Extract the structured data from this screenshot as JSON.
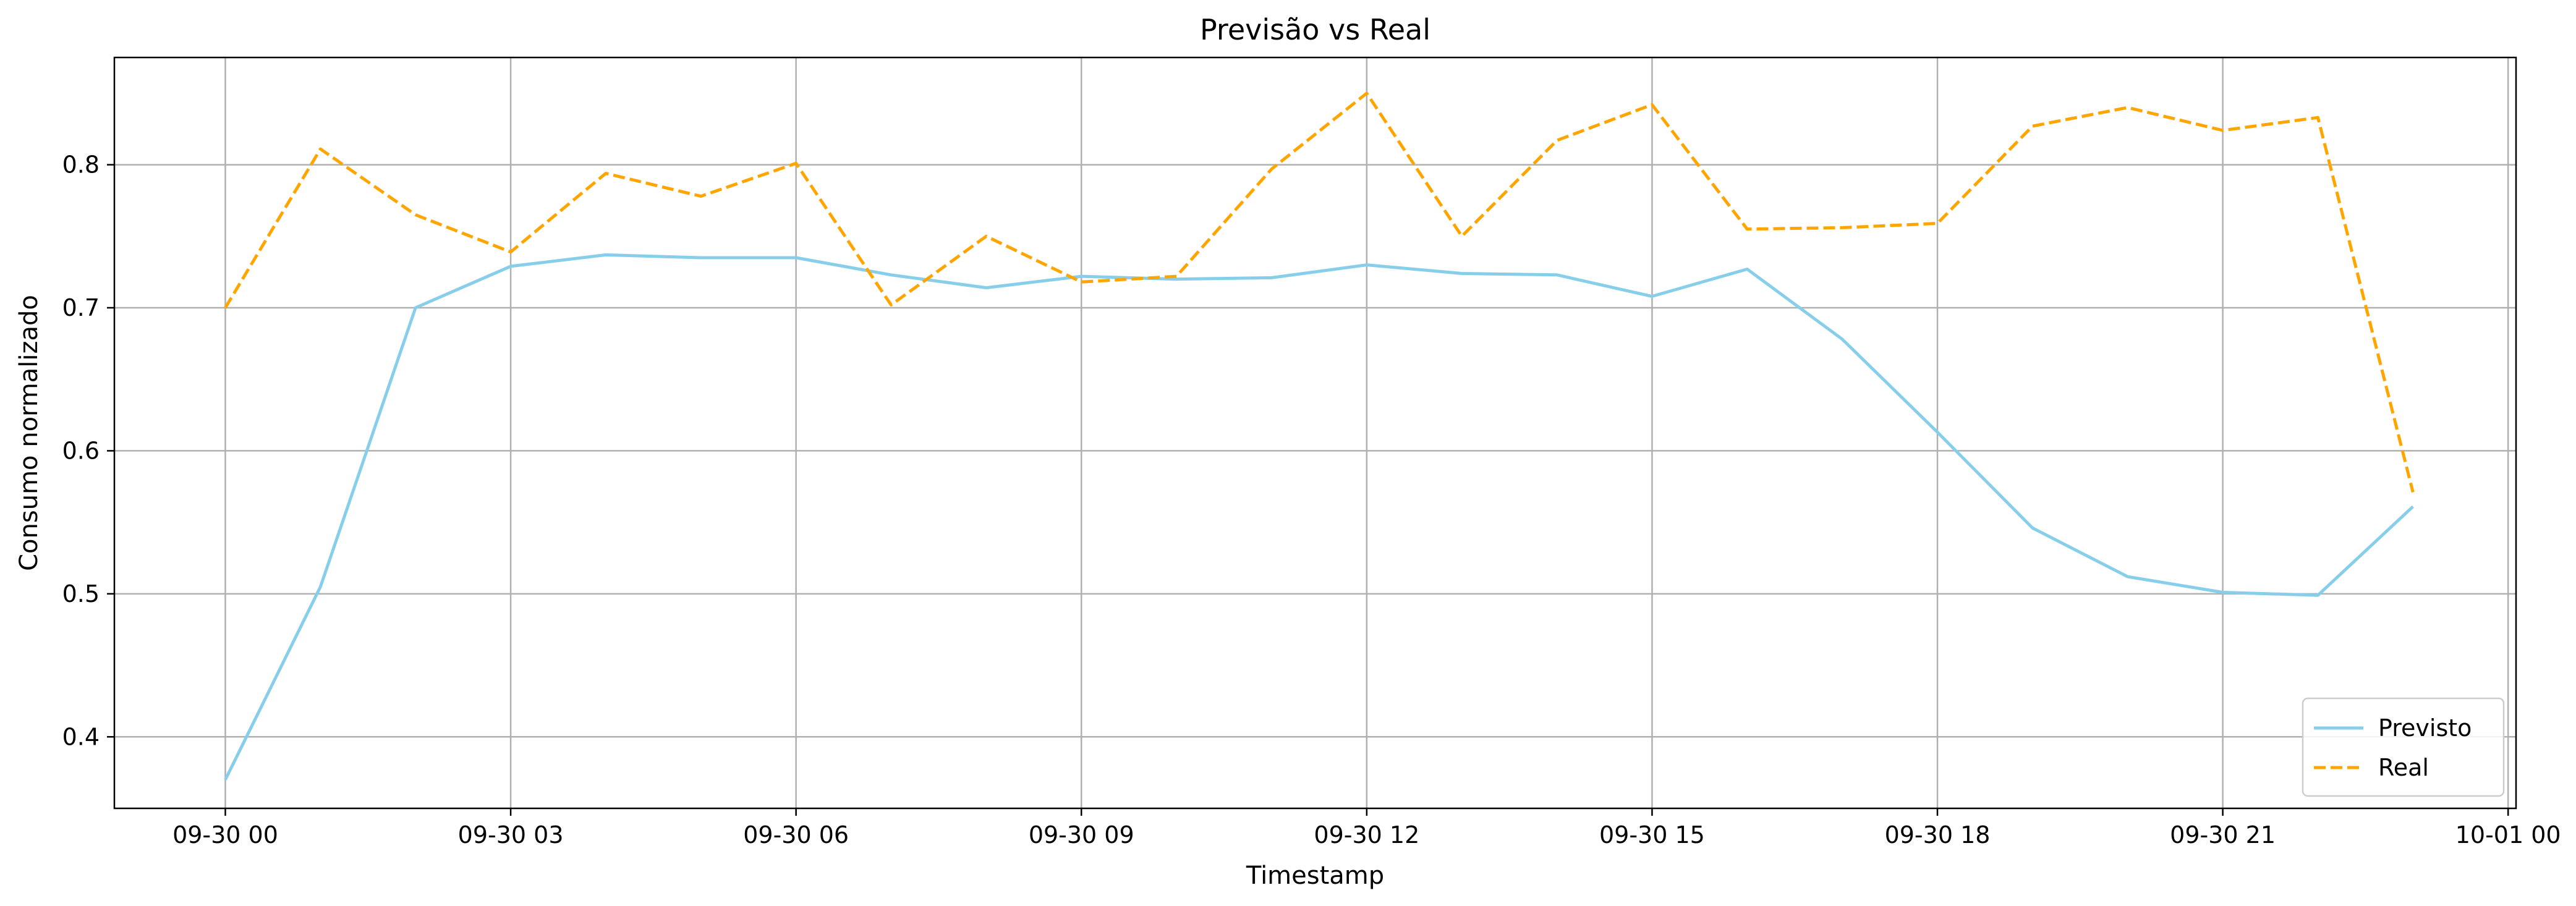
{
  "chart_data": {
    "type": "line",
    "title": "Previsão vs Real",
    "xlabel": "Timestamp",
    "ylabel": "Consumo normalizado",
    "x": [
      "2023-09-30T00:00",
      "2023-09-30T01:00",
      "2023-09-30T02:00",
      "2023-09-30T03:00",
      "2023-09-30T04:00",
      "2023-09-30T05:00",
      "2023-09-30T06:00",
      "2023-09-30T07:00",
      "2023-09-30T08:00",
      "2023-09-30T09:00",
      "2023-09-30T10:00",
      "2023-09-30T11:00",
      "2023-09-30T12:00",
      "2023-09-30T13:00",
      "2023-09-30T14:00",
      "2023-09-30T15:00",
      "2023-09-30T16:00",
      "2023-09-30T17:00",
      "2023-09-30T18:00",
      "2023-09-30T19:00",
      "2023-09-30T20:00",
      "2023-09-30T21:00",
      "2023-09-30T22:00",
      "2023-09-30T23:00"
    ],
    "xlim": [
      "2023-09-29T22:50",
      "2023-10-01T00:05"
    ],
    "ylim": [
      0.35,
      0.875
    ],
    "x_ticks": [
      "2023-09-30T00:00",
      "2023-09-30T03:00",
      "2023-09-30T06:00",
      "2023-09-30T09:00",
      "2023-09-30T12:00",
      "2023-09-30T15:00",
      "2023-09-30T18:00",
      "2023-09-30T21:00",
      "2023-10-01T00:00"
    ],
    "x_tick_labels": [
      "09-30 00",
      "09-30 03",
      "09-30 06",
      "09-30 09",
      "09-30 12",
      "09-30 15",
      "09-30 18",
      "09-30 21",
      "10-01 00"
    ],
    "y_ticks": [
      0.4,
      0.5,
      0.6,
      0.7,
      0.8
    ],
    "y_tick_labels": [
      "0.4",
      "0.5",
      "0.6",
      "0.7",
      "0.8"
    ],
    "grid": true,
    "legend_position": "bottom-right",
    "series": [
      {
        "name": "Previsto",
        "color": "#87ceeb",
        "dash": "solid",
        "values": [
          0.37,
          0.505,
          0.7,
          0.729,
          0.737,
          0.735,
          0.735,
          0.723,
          0.714,
          0.722,
          0.72,
          0.721,
          0.73,
          0.724,
          0.723,
          0.708,
          0.727,
          0.678,
          0.613,
          0.546,
          0.512,
          0.501,
          0.499,
          0.561
        ]
      },
      {
        "name": "Real",
        "color": "#ffa500",
        "dash": "dashed",
        "values": [
          0.7,
          0.811,
          0.765,
          0.739,
          0.794,
          0.778,
          0.801,
          0.702,
          0.75,
          0.718,
          0.722,
          0.797,
          0.85,
          0.75,
          0.817,
          0.842,
          0.755,
          0.756,
          0.759,
          0.827,
          0.84,
          0.824,
          0.833,
          0.571
        ]
      }
    ]
  }
}
